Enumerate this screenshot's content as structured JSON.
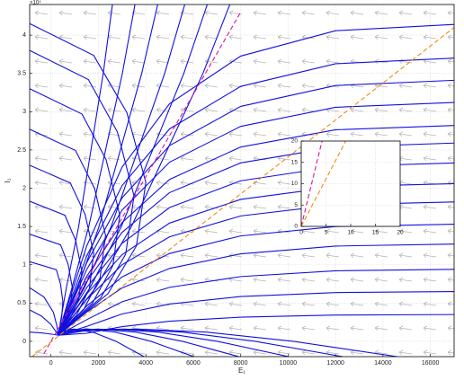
{
  "chart_data": [
    {
      "type": "line",
      "x_label": "E₁",
      "y_label": "I₁",
      "y_exponent": "×10⁴",
      "grid": true,
      "xlim": [
        -900,
        17000
      ],
      "xticks": [
        0,
        2000,
        4000,
        6000,
        8000,
        10000,
        12000,
        14000,
        16000
      ],
      "ylim": [
        -2000,
        44000
      ],
      "yticks": [
        0,
        {
          "value": 5000,
          "label": "0.5"
        },
        {
          "value": 10000,
          "label": "1"
        },
        {
          "value": 15000,
          "label": "1.5"
        },
        {
          "value": 20000,
          "label": "2"
        },
        {
          "value": 25000,
          "label": "2.5"
        },
        {
          "value": 30000,
          "label": "3"
        },
        {
          "value": 35000,
          "label": "3.5"
        },
        {
          "value": 40000,
          "label": "4"
        }
      ],
      "series": [
        {
          "color": "#1010e0",
          "x": [
            -900,
            1800,
            3200,
            4000,
            3600,
            2400,
            300
          ],
          "values": [
            41500,
            37350,
            29880,
            20750,
            12450,
            6225,
            800
          ]
        },
        {
          "color": "#1010e0",
          "x": [
            -900,
            1575,
            2800,
            3500,
            3150,
            2100,
            300
          ],
          "values": [
            38000,
            34200,
            27360,
            19000,
            11400,
            5700,
            800
          ]
        },
        {
          "color": "#1010e0",
          "x": [
            -900,
            1305,
            2320,
            2900,
            2610,
            1740,
            300
          ],
          "values": [
            33000,
            29700,
            23760,
            16500,
            9900,
            4950,
            800
          ]
        },
        {
          "color": "#1010e0",
          "x": [
            -900,
            1035,
            1840,
            2300,
            2070,
            1380,
            300
          ],
          "values": [
            27700,
            24930,
            19944,
            13850,
            8310,
            4155,
            800
          ]
        },
        {
          "color": "#1010e0",
          "x": [
            -900,
            810,
            1440,
            1800,
            1620,
            1080,
            300
          ],
          "values": [
            23000,
            20700,
            16560,
            11500,
            6900,
            3450,
            800
          ]
        },
        {
          "color": "#1010e0",
          "x": [
            -900,
            585,
            1040,
            1300,
            1170,
            780,
            300
          ],
          "values": [
            18300,
            16470,
            13176,
            9150,
            5490,
            2745,
            800
          ]
        },
        {
          "color": "#1010e0",
          "x": [
            -900,
            405,
            720,
            900,
            810,
            540,
            300
          ],
          "values": [
            14000,
            12600,
            10080,
            7000,
            4200,
            2100,
            800
          ]
        },
        {
          "color": "#1010e0",
          "x": [
            -900,
            225,
            400,
            500,
            450,
            300
          ],
          "values": [
            10400,
            9360,
            7488,
            5200,
            3120,
            800
          ]
        },
        {
          "color": "#1010e0",
          "x": [
            -900,
            -300,
            100,
            250,
            300
          ],
          "values": [
            7000,
            5800,
            3800,
            2000,
            800
          ]
        },
        {
          "color": "#1010e0",
          "x": [
            -900,
            -400,
            0,
            200,
            300
          ],
          "values": [
            4100,
            3300,
            2200,
            1300,
            800
          ]
        },
        {
          "color": "#1010e0",
          "x": [
            -900,
            -400,
            0,
            300
          ],
          "values": [
            1200,
            1100,
            950,
            800
          ]
        },
        {
          "color": "#1010e0",
          "x": [
            2590,
            2202,
            1684,
            1166,
            648,
            300
          ],
          "values": [
            44000,
            35000,
            25000,
            15000,
            7000,
            800
          ]
        },
        {
          "color": "#1010e0",
          "x": [
            3540,
            3009,
            2301,
            1593,
            885,
            300
          ],
          "values": [
            44000,
            35000,
            25000,
            15000,
            7000,
            800
          ]
        },
        {
          "color": "#1010e0",
          "x": [
            4500,
            3825,
            2925,
            2025,
            1125,
            300
          ],
          "values": [
            44000,
            35000,
            25000,
            15000,
            7000,
            800
          ]
        },
        {
          "color": "#1010e0",
          "x": [
            5640,
            4794,
            3666,
            2538,
            1410,
            300
          ],
          "values": [
            44000,
            35000,
            25000,
            15000,
            7000,
            800
          ]
        },
        {
          "color": "#1010e0",
          "x": [
            6590,
            5602,
            4284,
            2966,
            1648,
            300
          ],
          "values": [
            44000,
            35000,
            25000,
            15000,
            7000,
            800
          ]
        },
        {
          "color": "#1010e0",
          "x": [
            7540,
            6409,
            4901,
            3393,
            1885,
            300
          ],
          "values": [
            44000,
            35000,
            25000,
            15000,
            7000,
            800
          ]
        },
        {
          "color": "#1010e0",
          "x": [
            17000,
            12000,
            8000,
            5000,
            3000,
            1500,
            300
          ],
          "values": [
            41400,
            40572,
            37260,
            31050,
            22770,
            12420,
            800
          ]
        },
        {
          "color": "#1010e0",
          "x": [
            17000,
            12000,
            8000,
            5000,
            3000,
            1500,
            300
          ],
          "values": [
            37000,
            36260,
            33300,
            27750,
            20350,
            11100,
            800
          ]
        },
        {
          "color": "#1010e0",
          "x": [
            17000,
            12000,
            8000,
            5000,
            3000,
            1500,
            300
          ],
          "values": [
            34100,
            33418,
            30690,
            25575,
            18755,
            10230,
            800
          ]
        },
        {
          "color": "#1010e0",
          "x": [
            17000,
            12000,
            8000,
            5000,
            3000,
            1500,
            300
          ],
          "values": [
            31200,
            30576,
            28080,
            23400,
            17160,
            9360,
            800
          ]
        },
        {
          "color": "#1010e0",
          "x": [
            17000,
            12000,
            8000,
            5000,
            3000,
            1500,
            300
          ],
          "values": [
            28200,
            27636,
            25380,
            21150,
            15510,
            8460,
            800
          ]
        },
        {
          "color": "#1010e0",
          "x": [
            17000,
            12000,
            8000,
            5000,
            3000,
            1500,
            300
          ],
          "values": [
            25900,
            25382,
            23310,
            19425,
            14245,
            7770,
            800
          ]
        },
        {
          "color": "#1010e0",
          "x": [
            17000,
            12000,
            8000,
            5000,
            3000,
            1500,
            300
          ],
          "values": [
            23300,
            22834,
            20970,
            17475,
            12815,
            6990,
            800
          ]
        },
        {
          "color": "#1010e0",
          "x": [
            17000,
            12000,
            8000,
            5000,
            3000,
            1500,
            300
          ],
          "values": [
            20600,
            20188,
            18540,
            15450,
            11330,
            6180,
            800
          ]
        },
        {
          "color": "#1010e0",
          "x": [
            17000,
            12000,
            8000,
            5000,
            3000,
            1500,
            300
          ],
          "values": [
            18200,
            17836,
            16380,
            13650,
            10010,
            5460,
            800
          ]
        },
        {
          "color": "#1010e0",
          "x": [
            17000,
            12000,
            8000,
            5000,
            3000,
            1500,
            300
          ],
          "values": [
            15300,
            14994,
            13770,
            11475,
            8415,
            4590,
            800
          ]
        },
        {
          "color": "#1010e0",
          "x": [
            17000,
            12000,
            8000,
            5000,
            3000,
            1500,
            300
          ],
          "values": [
            12700,
            12446,
            11430,
            9525,
            6985,
            3810,
            800
          ]
        },
        {
          "color": "#1010e0",
          "x": [
            17000,
            12000,
            8000,
            5000,
            3000,
            1500,
            300
          ],
          "values": [
            9400,
            9212,
            8460,
            7050,
            5170,
            2820,
            800
          ]
        },
        {
          "color": "#1010e0",
          "x": [
            17000,
            12000,
            8000,
            5000,
            3000,
            1500,
            300
          ],
          "values": [
            6500,
            6370,
            5850,
            4875,
            3575,
            1950,
            800
          ]
        },
        {
          "color": "#1010e0",
          "x": [
            17000,
            12000,
            8000,
            5000,
            3000,
            1500,
            300
          ],
          "values": [
            3500,
            3430,
            3150,
            2625,
            1925,
            1050,
            800
          ]
        },
        {
          "color": "#1010e0",
          "x": [
            3920,
            2744,
            1764,
            980,
            392,
            300
          ],
          "values": [
            -2000,
            0,
            1200,
            1600,
            1400,
            800
          ]
        },
        {
          "color": "#1010e0",
          "x": [
            6020,
            4214,
            2709,
            1505,
            602,
            300
          ],
          "values": [
            -2000,
            0,
            1200,
            1600,
            1400,
            800
          ]
        },
        {
          "color": "#1010e0",
          "x": [
            7920,
            5544,
            3564,
            1980,
            792,
            300
          ],
          "values": [
            -2000,
            0,
            1200,
            1600,
            1400,
            800
          ]
        },
        {
          "color": "#1010e0",
          "x": [
            10020,
            7014,
            4509,
            2505,
            1002,
            300
          ],
          "values": [
            -2000,
            0,
            1200,
            1600,
            1400,
            800
          ]
        },
        {
          "color": "#1010e0",
          "x": [
            12300,
            8610,
            5535,
            3075,
            1230,
            300
          ],
          "values": [
            -2000,
            0,
            1200,
            1600,
            1400,
            800
          ]
        },
        {
          "color": "#1010e0",
          "x": [
            14600,
            10220,
            6570,
            3650,
            1460,
            300
          ],
          "values": [
            -2000,
            0,
            1200,
            1600,
            1400,
            800
          ]
        },
        {
          "color": "#e0109a",
          "dashed": true,
          "x": [
            -300,
            8000
          ],
          "values": [
            -1600,
            43000
          ]
        },
        {
          "color": "#f08a10",
          "dashed": true,
          "x": [
            -800,
            17000
          ],
          "values": [
            -2000,
            41000
          ]
        }
      ]
    },
    {
      "type": "line",
      "grid": true,
      "xlim": [
        0,
        20
      ],
      "xticks": [
        0,
        5,
        10,
        15,
        20
      ],
      "ylim": [
        0,
        20
      ],
      "yticks": [
        0,
        5,
        10,
        15,
        20
      ],
      "series": [
        {
          "color": "#e0109a",
          "dashed": true,
          "x": [
            0,
            4.2
          ],
          "values": [
            0,
            20
          ]
        },
        {
          "color": "#f08a10",
          "dashed": true,
          "x": [
            0,
            9
          ],
          "values": [
            0,
            20
          ]
        }
      ]
    }
  ]
}
